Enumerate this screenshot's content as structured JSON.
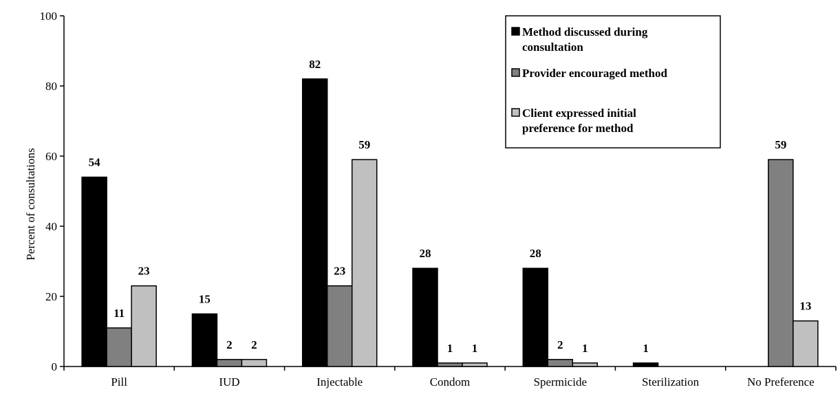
{
  "chart_data": {
    "type": "bar",
    "title": "",
    "xlabel": "",
    "ylabel": "Percent  of consultations",
    "ylim": [
      0,
      100
    ],
    "yticks": [
      0,
      20,
      40,
      60,
      80,
      100
    ],
    "grid": false,
    "legend_position": "top-right",
    "categories": [
      "Pill",
      "IUD",
      "Injectable",
      "Condom",
      "Spermicide",
      "Sterilization",
      "No Preference"
    ],
    "series": [
      {
        "name": "Method discussed during consultation",
        "legend_lines": [
          "Method discussed during",
          "consultation"
        ],
        "color": "#000000",
        "values": [
          54,
          15,
          82,
          28,
          28,
          1,
          null
        ],
        "labels": [
          "54",
          "15",
          "82",
          "28",
          "28",
          "1",
          ""
        ]
      },
      {
        "name": "Provider encouraged method",
        "legend_lines": [
          "Provider encouraged method"
        ],
        "color": "#808080",
        "values": [
          11,
          2,
          23,
          1,
          2,
          null,
          59
        ],
        "labels": [
          "11",
          "2",
          "23",
          "1",
          "2",
          "",
          "59"
        ]
      },
      {
        "name": "Client expressed initial preference for method",
        "legend_lines": [
          "Client expressed initial",
          "preference for method"
        ],
        "color": "#c0c0c0",
        "values": [
          23,
          2,
          59,
          1,
          1,
          null,
          13
        ],
        "labels": [
          "23",
          "2",
          "59",
          "1",
          "1",
          "",
          "13"
        ]
      }
    ]
  }
}
